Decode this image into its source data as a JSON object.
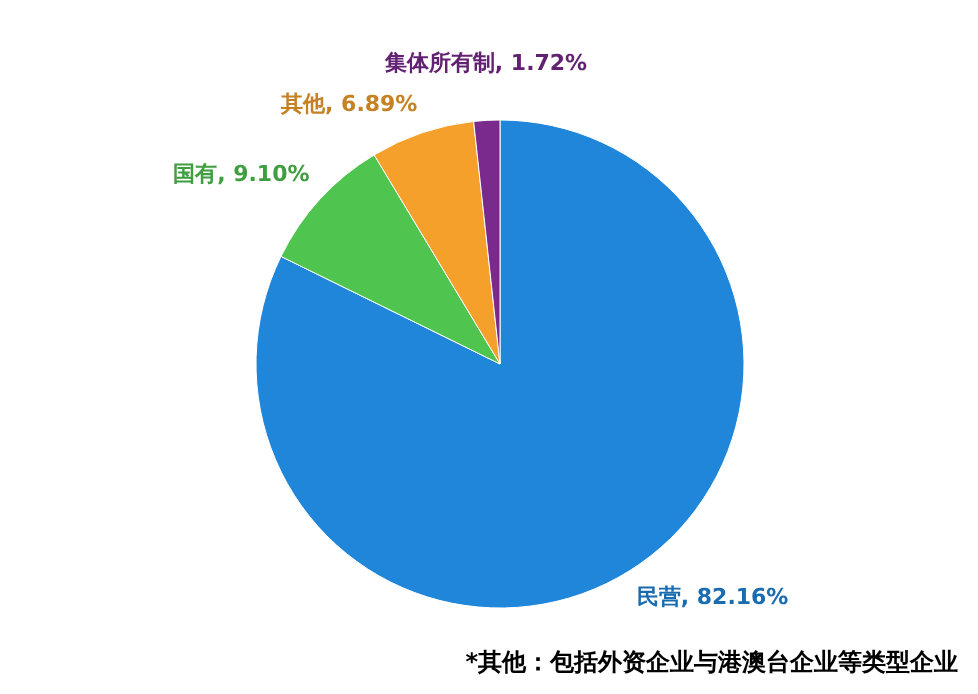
{
  "chart_data": {
    "type": "pie",
    "categories": [
      "民营",
      "国有",
      "其他",
      "集体所有制"
    ],
    "values": [
      82.16,
      9.1,
      6.89,
      1.72
    ],
    "value_labels": [
      "82.16%",
      "9.10%",
      "6.89%",
      "1.72%"
    ],
    "colors": [
      "#1f86d9",
      "#4fc44f",
      "#f5a02a",
      "#7a2a8c"
    ],
    "annotations": [
      "*其他：包括外资企业与港澳台企业等类型企业"
    ]
  }
}
